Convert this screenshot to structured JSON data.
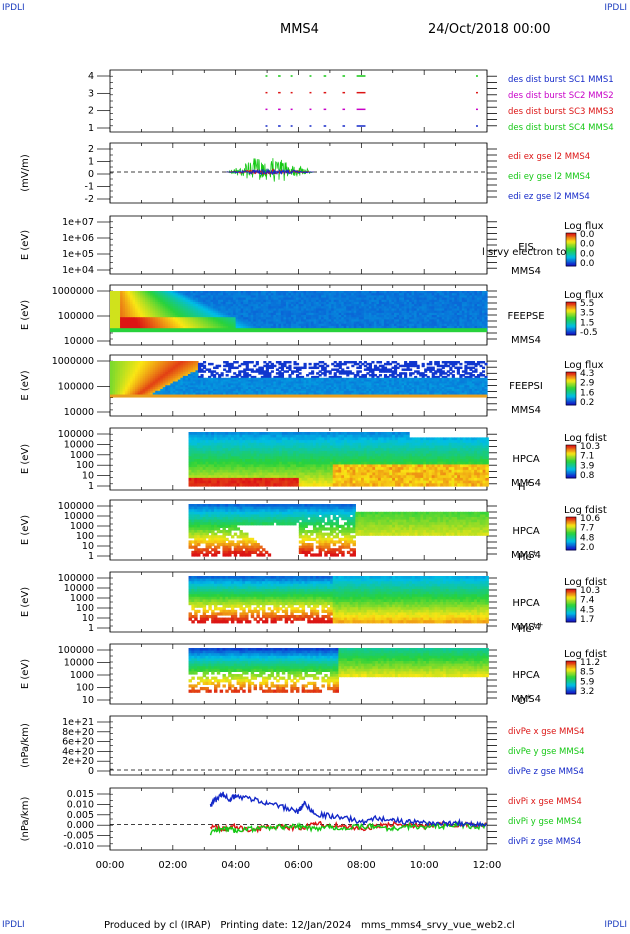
{
  "corners": {
    "top_left": "IPDLI",
    "top_right": "IPDLI",
    "bottom_left": "IPDLI",
    "bottom_right": "IPDLI"
  },
  "header": {
    "spacecraft": "MMS4",
    "date": "24/Oct/2018 00:00"
  },
  "footer": {
    "produced_by": "Produced by cl (IRAP)",
    "printing_date": "Printing date: 12/Jan/2024",
    "script": "mms_mms4_srvy_vue_web2.cl"
  },
  "colors": {
    "blue": "#1428c8",
    "magenta": "#c800c8",
    "red": "#dc1414",
    "green": "#14c814",
    "axis": "#000000"
  },
  "chart_data": [
    {
      "type": "scatter",
      "id": "burst",
      "ylabel": "",
      "yticks": [
        "4",
        "3",
        "2",
        "1"
      ],
      "ylim": [
        0.5,
        4.5
      ],
      "legend": [
        "des dist burst SC1 MMS1",
        "des dist burst SC2 MMS2",
        "des dist burst SC3 MMS3",
        "des dist burst SC4 MMS4"
      ],
      "legend_colors": [
        "#1428c8",
        "#c800c8",
        "#dc1414",
        "#14c814"
      ],
      "series": [
        {
          "level": 4,
          "color": "#14c814",
          "intervals": [
            [
              4.95,
              4.98
            ],
            [
              5.35,
              5.4
            ],
            [
              5.75,
              5.78
            ],
            [
              6.35,
              6.38
            ],
            [
              6.8,
              6.85
            ],
            [
              7.4,
              7.45
            ],
            [
              7.85,
              8.1
            ],
            [
              11.65,
              11.68
            ]
          ]
        },
        {
          "level": 3,
          "color": "#dc1414",
          "intervals": [
            [
              4.95,
              4.98
            ],
            [
              5.35,
              5.4
            ],
            [
              5.75,
              5.78
            ],
            [
              6.35,
              6.38
            ],
            [
              6.8,
              6.85
            ],
            [
              7.4,
              7.45
            ],
            [
              7.85,
              8.1
            ],
            [
              11.65,
              11.68
            ]
          ]
        },
        {
          "level": 2,
          "color": "#c800c8",
          "intervals": [
            [
              4.95,
              4.98
            ],
            [
              5.35,
              5.4
            ],
            [
              5.75,
              5.78
            ],
            [
              6.35,
              6.38
            ],
            [
              6.8,
              6.85
            ],
            [
              7.4,
              7.45
            ],
            [
              7.85,
              8.1
            ],
            [
              11.65,
              11.68
            ]
          ]
        },
        {
          "level": 1,
          "color": "#1428c8",
          "intervals": [
            [
              4.95,
              4.98
            ],
            [
              5.35,
              5.4
            ],
            [
              5.75,
              5.78
            ],
            [
              6.35,
              6.38
            ],
            [
              6.8,
              6.85
            ],
            [
              7.4,
              7.45
            ],
            [
              7.85,
              8.1
            ],
            [
              11.65,
              11.68
            ]
          ]
        }
      ]
    },
    {
      "type": "line",
      "id": "edi",
      "ylabel": "(mV/m)",
      "yticks": [
        "2",
        "1",
        "0",
        "-1",
        "-2"
      ],
      "ylim": [
        -3,
        2.8
      ],
      "legend": [
        "edi ex gse l2 MMS4",
        "edi ey gse l2 MMS4",
        "edi ez gse l2 MMS4"
      ],
      "legend_colors": [
        "#dc1414",
        "#14c814",
        "#1428c8"
      ],
      "active_range": [
        3.7,
        6.5
      ]
    },
    {
      "type": "heatmap",
      "id": "eis",
      "ylabel": "E (eV)",
      "yticks": [
        "1e+07",
        "1e+06",
        "1e+05",
        "1e+04"
      ],
      "label_lines": [
        "EIS",
        "MMS4"
      ],
      "overlay_label": "l srvy electron to",
      "colorbar_title": "Log flux",
      "colorbar_ticks": [
        "0.0",
        "0.0",
        "0.0",
        "0.0"
      ],
      "empty": true
    },
    {
      "type": "heatmap",
      "id": "feepse",
      "ylabel": "E (eV)",
      "yticks": [
        "1000000",
        "100000",
        "10000"
      ],
      "label_lines": [
        "FEEPSE",
        "MMS4"
      ],
      "colorbar_title": "Log flux",
      "colorbar_ticks": [
        "5.5",
        "3.5",
        "1.5",
        "-0.5"
      ]
    },
    {
      "type": "heatmap",
      "id": "feepsi",
      "ylabel": "E (eV)",
      "yticks": [
        "1000000",
        "100000",
        "10000"
      ],
      "label_lines": [
        "FEEPSI",
        "MMS4"
      ],
      "colorbar_title": "Log flux",
      "colorbar_ticks": [
        "4.3",
        "2.9",
        "1.6",
        "0.2"
      ]
    },
    {
      "type": "heatmap",
      "id": "hpca_h",
      "ylabel": "E (eV)",
      "yticks": [
        "100000",
        "10000",
        "1000",
        "100",
        "10",
        "1"
      ],
      "label_lines": [
        "HPCA",
        "MMS4"
      ],
      "species": "H",
      "species_sup": "+",
      "colorbar_title": "Log fdist",
      "colorbar_ticks": [
        "10.3",
        "7.1",
        "3.9",
        "0.8"
      ],
      "data_start": 2.5
    },
    {
      "type": "heatmap",
      "id": "hpca_he",
      "ylabel": "E (eV)",
      "yticks": [
        "100000",
        "10000",
        "1000",
        "100",
        "10",
        "1"
      ],
      "label_lines": [
        "HPCA",
        "MMS4"
      ],
      "species": "He",
      "species_sup": "+",
      "colorbar_title": "Log fdist",
      "colorbar_ticks": [
        "10.6",
        "7.7",
        "4.8",
        "2.0"
      ],
      "data_start": 2.5
    },
    {
      "type": "heatmap",
      "id": "hpca_hepp",
      "ylabel": "E (eV)",
      "yticks": [
        "100000",
        "10000",
        "1000",
        "100",
        "10",
        "1"
      ],
      "label_lines": [
        "HPCA",
        "MMS4"
      ],
      "species": "He",
      "species_sup": "++",
      "colorbar_title": "Log fdist",
      "colorbar_ticks": [
        "10.3",
        "7.4",
        "4.5",
        "1.7"
      ],
      "data_start": 2.5
    },
    {
      "type": "heatmap",
      "id": "hpca_o",
      "ylabel": "E (eV)",
      "yticks": [
        "100000",
        "10000",
        "1000",
        "100",
        "10"
      ],
      "label_lines": [
        "HPCA",
        "MMS4"
      ],
      "species": "O",
      "species_sup": "+",
      "colorbar_title": "Log fdist",
      "colorbar_ticks": [
        "11.2",
        "8.5",
        "5.9",
        "3.2"
      ],
      "data_start": 2.5
    },
    {
      "type": "line",
      "id": "divpe",
      "ylabel": "(nPa/km)",
      "yticks": [
        "1e+21",
        "8e+20",
        "6e+20",
        "4e+20",
        "2e+20",
        "0"
      ],
      "ylim": [
        -1e+20,
        1.1e+21
      ],
      "legend": [
        "divPe x gse MMS4",
        "divPe y gse MMS4",
        "divPe z gse MMS4"
      ],
      "legend_colors": [
        "#dc1414",
        "#14c814",
        "#1428c8"
      ]
    },
    {
      "type": "line",
      "id": "divpi",
      "ylabel": "(nPa/km)",
      "yticks": [
        "0.015",
        "0.010",
        "0.005",
        "0.000",
        "-0.005",
        "-0.010"
      ],
      "ylim": [
        -0.012,
        0.017
      ],
      "legend": [
        "divPi x gse MMS4",
        "divPi y gse MMS4",
        "divPi z gse MMS4"
      ],
      "legend_colors": [
        "#dc1414",
        "#14c814",
        "#1428c8"
      ],
      "series": [
        {
          "name": "x",
          "color": "#dc1414",
          "x": [
            3.2,
            3.6,
            4.0,
            4.5,
            5.0,
            5.5,
            6.0,
            6.5,
            7.0,
            7.5,
            8.0,
            8.5,
            9.0,
            9.5,
            10.0,
            10.5,
            11.0,
            11.5,
            12.0
          ],
          "y": [
            -0.001,
            -0.002,
            -0.001,
            -0.003,
            -0.001,
            -0.001,
            -0.002,
            0.0,
            0.0,
            -0.001,
            -0.002,
            -0.001,
            0.0,
            0.0,
            -0.001,
            0.0,
            -0.001,
            0.0,
            0.0
          ]
        },
        {
          "name": "y",
          "color": "#14c814",
          "x": [
            3.2,
            3.6,
            4.0,
            4.5,
            5.0,
            5.5,
            6.0,
            6.5,
            7.0,
            7.5,
            8.0,
            8.5,
            9.0,
            9.5,
            10.0,
            10.5,
            11.0,
            11.5,
            12.0
          ],
          "y": [
            -0.004,
            -0.002,
            -0.003,
            -0.002,
            -0.002,
            -0.001,
            -0.001,
            -0.002,
            -0.001,
            -0.002,
            -0.001,
            -0.001,
            -0.002,
            -0.001,
            -0.001,
            -0.001,
            0.0,
            -0.001,
            -0.001
          ]
        },
        {
          "name": "z",
          "color": "#1428c8",
          "x": [
            3.2,
            3.4,
            3.6,
            3.8,
            4.0,
            4.5,
            5.0,
            5.5,
            6.0,
            6.2,
            6.5,
            7.0,
            7.5,
            8.0,
            8.5,
            9.0,
            9.5,
            10.0,
            10.5,
            11.0,
            11.5,
            12.0
          ],
          "y": [
            0.009,
            0.012,
            0.014,
            0.012,
            0.013,
            0.012,
            0.01,
            0.008,
            0.006,
            0.01,
            0.005,
            0.004,
            0.003,
            0.001,
            0.003,
            0.002,
            0.001,
            0.001,
            0.0,
            0.001,
            0.0,
            0.0
          ]
        }
      ]
    }
  ],
  "time_axis": {
    "ticks": [
      "00:00",
      "02:00",
      "04:00",
      "06:00",
      "08:00",
      "10:00",
      "12:00"
    ],
    "range_hours": [
      0,
      12
    ]
  }
}
